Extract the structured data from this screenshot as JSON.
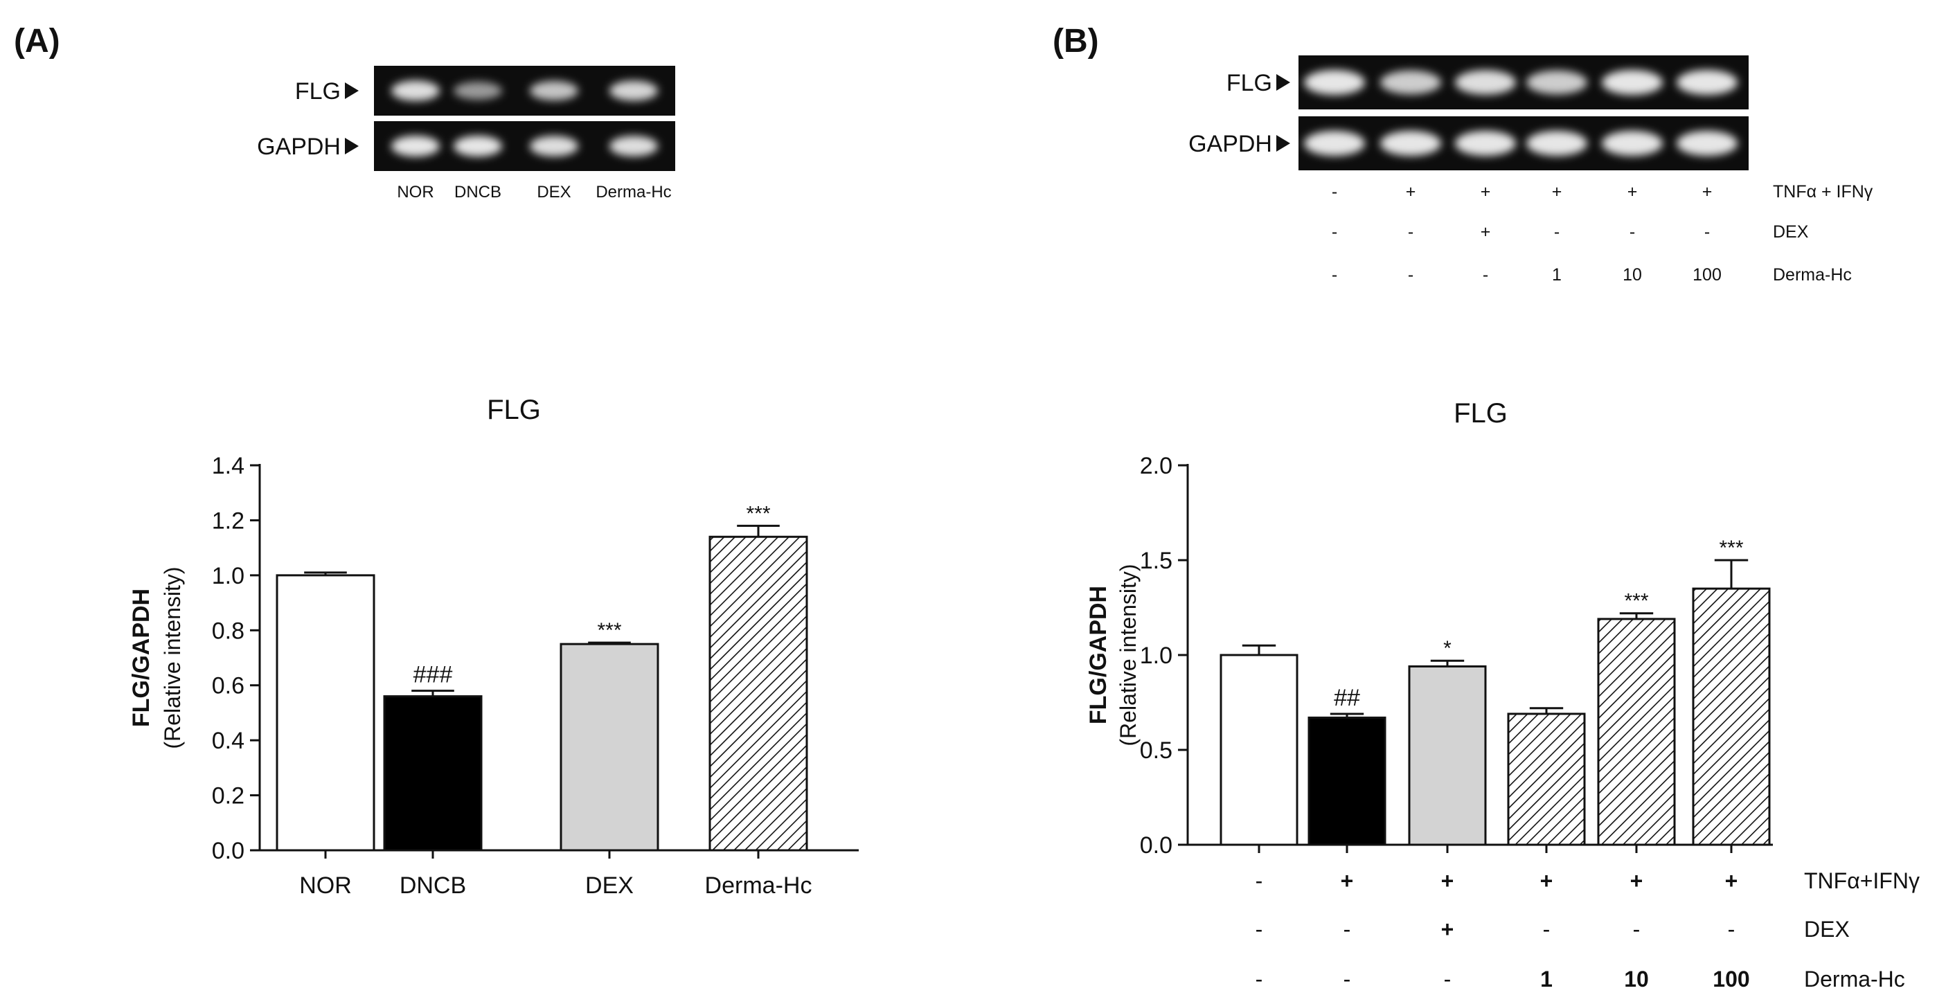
{
  "panels": [
    {
      "id": "A",
      "label": "(A)",
      "gel": {
        "rows": [
          {
            "label": "FLG",
            "band_intensity": [
              0.95,
              0.55,
              0.8,
              0.9
            ]
          },
          {
            "label": "GAPDH",
            "band_intensity": [
              1.0,
              1.0,
              0.95,
              0.95
            ]
          }
        ],
        "lane_labels": [
          "NOR",
          "DNCB",
          "DEX",
          "Derma-Hc"
        ],
        "condition_rows": []
      }
    },
    {
      "id": "B",
      "label": "(B)",
      "gel": {
        "rows": [
          {
            "label": "FLG",
            "band_intensity": [
              1.0,
              0.85,
              0.95,
              0.85,
              1.0,
              1.0
            ]
          },
          {
            "label": "GAPDH",
            "band_intensity": [
              1.0,
              1.0,
              1.0,
              1.0,
              1.0,
              1.0
            ]
          }
        ],
        "lane_labels": [],
        "condition_rows": [
          {
            "label": "TNFα + IFNγ",
            "values": [
              "-",
              "+",
              "+",
              "+",
              "+",
              "+"
            ]
          },
          {
            "label": "DEX",
            "values": [
              "-",
              "-",
              "+",
              "-",
              "-",
              "-"
            ]
          },
          {
            "label": "Derma-Hc",
            "values": [
              "-",
              "-",
              "-",
              "1",
              "10",
              "100"
            ]
          }
        ]
      }
    }
  ],
  "chart_data": [
    {
      "type": "bar",
      "title": "FLG",
      "ylabel": "FLG/GAPDH",
      "ylabel2": "(Relative intensity)",
      "xlabel": "",
      "ylim": [
        0,
        1.4
      ],
      "yticks": [
        "0.0",
        "0.2",
        "0.4",
        "0.6",
        "0.8",
        "1.0",
        "1.2",
        "1.4"
      ],
      "categories": [
        "NOR",
        "DNCB",
        "DEX",
        "Derma-Hc"
      ],
      "values": [
        1.0,
        0.56,
        0.75,
        1.14
      ],
      "errors": [
        0.01,
        0.02,
        0.005,
        0.04
      ],
      "annotations": [
        "",
        "###",
        "***",
        "***"
      ],
      "fills": [
        "white",
        "black",
        "gray",
        "hatch"
      ],
      "condition_rows": [],
      "grid": false,
      "legend": "none"
    },
    {
      "type": "bar",
      "title": "FLG",
      "ylabel": "FLG/GAPDH",
      "ylabel2": "(Relative intensity)",
      "xlabel": "",
      "ylim": [
        0,
        2.0
      ],
      "yticks": [
        "0.0",
        "0.5",
        "1.0",
        "1.5",
        "2.0"
      ],
      "categories": [
        "",
        "",
        "",
        "",
        "",
        ""
      ],
      "values": [
        1.0,
        0.67,
        0.94,
        0.69,
        1.19,
        1.35
      ],
      "errors": [
        0.05,
        0.02,
        0.03,
        0.03,
        0.03,
        0.15
      ],
      "annotations": [
        "",
        "##",
        "*",
        "",
        "***",
        "***"
      ],
      "fills": [
        "white",
        "black",
        "gray",
        "hatch",
        "hatch",
        "hatch"
      ],
      "condition_rows": [
        {
          "label": "TNFα+IFNγ",
          "values": [
            "-",
            "+",
            "+",
            "+",
            "+",
            "+"
          ]
        },
        {
          "label": "DEX",
          "values": [
            "-",
            "-",
            "+",
            "-",
            "-",
            "-"
          ]
        },
        {
          "label": "Derma-Hc",
          "values": [
            "-",
            "-",
            "-",
            "1",
            "10",
            "100"
          ]
        }
      ],
      "grid": false,
      "legend": "none"
    }
  ],
  "colors": {
    "bar_outline": "#111111",
    "black_fill": "#000000",
    "gray_fill": "#d3d3d3",
    "white_fill": "#ffffff",
    "gel_background": "#0d0d0d",
    "band": "#d9d9d9"
  }
}
